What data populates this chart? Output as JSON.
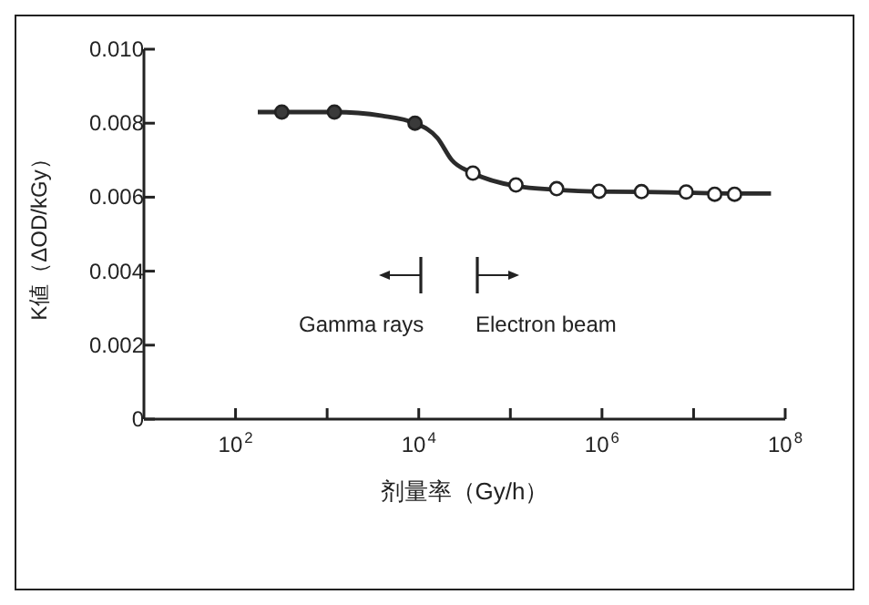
{
  "chart_data": {
    "type": "scatter",
    "xlabel": "剂量率（Gy/h）",
    "ylabel": "K値（ΔOD/kGy）",
    "log": "x",
    "xlim": [
      10,
      100000000
    ],
    "xticks": [
      {
        "value": 100,
        "label": "10$^{2}$"
      },
      {
        "value": 1000,
        "label": null
      },
      {
        "value": 10000,
        "label": "10$^{4}$"
      },
      {
        "value": 100000,
        "label": null
      },
      {
        "value": 1000000,
        "label": "10$^{6}$"
      },
      {
        "value": 10000000,
        "label": null
      },
      {
        "value": 100000000,
        "label": "10$^{8}$"
      }
    ],
    "ylim": [
      0,
      0.01
    ],
    "yticks": [
      0,
      {
        "value": 0.002,
        "label": "0.002"
      },
      {
        "value": 0.004,
        "label": "0.004"
      },
      {
        "value": 0.006,
        "label": "0.006"
      },
      {
        "value": 0.008,
        "label": "0.008"
      },
      {
        "value": 0.01,
        "label": "0.010"
      }
    ],
    "series": [
      {
        "type": "line",
        "color": "#2b2b2b",
        "marker": "none",
        "line_style": "solid",
        "x": [
          175,
          320,
          1200,
          4000,
          9100,
          16000,
          23000,
          39000,
          115000,
          320000,
          930000,
          2700000,
          8300000,
          28000000,
          70000000
        ],
        "values": [
          0.0083,
          0.0083,
          0.0083,
          0.0082,
          0.008,
          0.0076,
          0.007,
          0.00665,
          0.0063,
          0.0062,
          0.00615,
          0.00614,
          0.00612,
          0.0061,
          0.0061
        ]
      },
      {
        "color": "#3a3a3a",
        "marker": "circle",
        "x": [
          320,
          1200,
          9100
        ],
        "values": [
          0.0083,
          0.0083,
          0.008
        ]
      },
      {
        "color": "#ffffff",
        "marker": "circle",
        "x": [
          39000,
          115000,
          320000,
          930000,
          2700000,
          8300000,
          17000000,
          28000000
        ],
        "values": [
          0.00665,
          0.00633,
          0.00623,
          0.00616,
          0.00615,
          0.00614,
          0.00608,
          0.00608
        ]
      }
    ],
    "annotations": [
      "Gamma rays",
      "Electron beam"
    ]
  }
}
